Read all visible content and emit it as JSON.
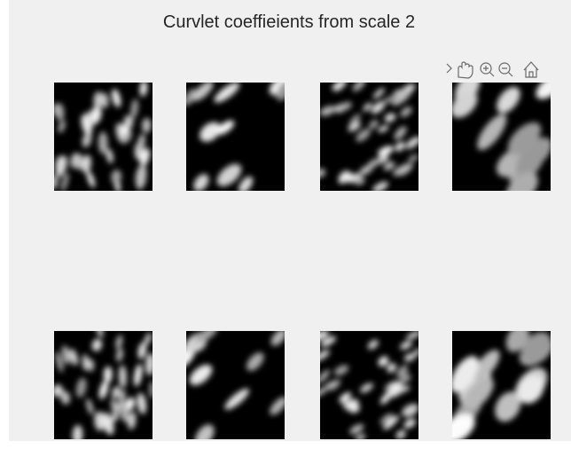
{
  "figure": {
    "title": "Curvlet coeffieients from scale 2"
  }
}
